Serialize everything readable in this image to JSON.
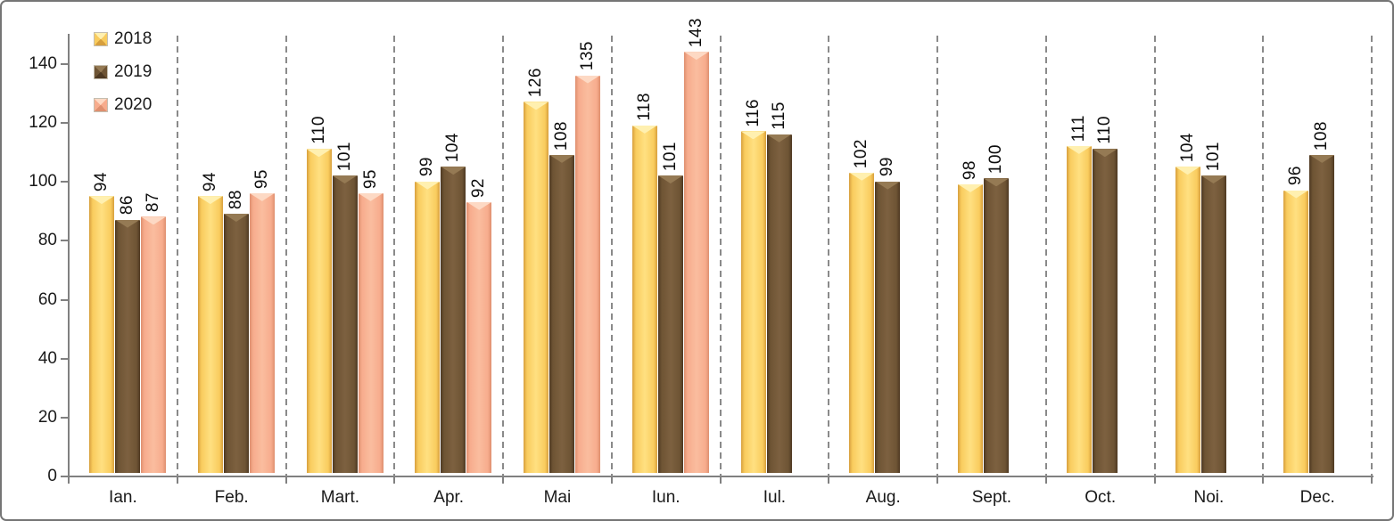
{
  "chart_data": {
    "type": "bar",
    "title": "",
    "xlabel": "",
    "ylabel": "",
    "categories": [
      "Ian.",
      "Feb.",
      "Mart.",
      "Apr.",
      "Mai",
      "Iun.",
      "Iul.",
      "Aug.",
      "Sept.",
      "Oct.",
      "Noi.",
      "Dec."
    ],
    "series": [
      {
        "name": "2018",
        "values": [
          94,
          94,
          110,
          99,
          126,
          118,
          116,
          102,
          98,
          111,
          104,
          96
        ],
        "colors": {
          "hi": "#FFF0B0",
          "light": "#FFE081",
          "main": "#F9CC5E",
          "dark": "#D79F3D"
        }
      },
      {
        "name": "2019",
        "values": [
          86,
          88,
          101,
          104,
          108,
          101,
          115,
          99,
          100,
          110,
          101,
          108
        ],
        "colors": {
          "hi": "#957A54",
          "light": "#7D6140",
          "main": "#6E5434",
          "dark": "#4E3922"
        }
      },
      {
        "name": "2020",
        "values": [
          87,
          95,
          95,
          92,
          135,
          143,
          null,
          null,
          null,
          null,
          null,
          null
        ],
        "colors": {
          "hi": "#FDD9C4",
          "light": "#FABD9F",
          "main": "#F7AC8D",
          "dark": "#DE8F6F"
        }
      }
    ],
    "ylim": [
      0,
      150
    ],
    "yticks": [
      0,
      20,
      40,
      60,
      80,
      100,
      120,
      140
    ],
    "bar_value_labels": "rotated-90-above-bars",
    "legend_position": "top-left-inside",
    "grid": "vertical-dashed-category-separators",
    "axis_color": "#808080",
    "separator_color": "#8A8A8A",
    "text_color": "#1A1A1A"
  }
}
